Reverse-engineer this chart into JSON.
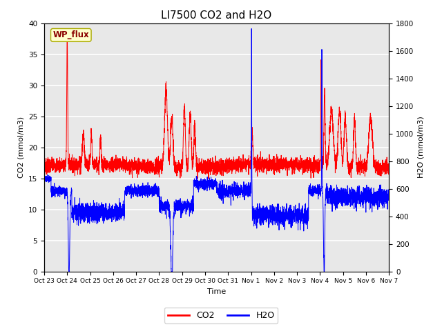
{
  "title": "LI7500 CO2 and H2O",
  "xlabel": "Time",
  "ylabel_left": "CO2 (mmol/m3)",
  "ylabel_right": "H2O (mmol/m3)",
  "ylim_left": [
    0,
    40
  ],
  "ylim_right": [
    0,
    1800
  ],
  "xtick_labels": [
    "Oct 23",
    "Oct 24",
    "Oct 25",
    "Oct 26",
    "Oct 27",
    "Oct 28",
    "Oct 29",
    "Oct 30",
    "Oct 31",
    "Nov 1",
    "Nov 2",
    "Nov 3",
    "Nov 4",
    "Nov 5",
    "Nov 6",
    "Nov 7"
  ],
  "annotation_text": "WP_flux",
  "annotation_color": "#8B0000",
  "annotation_bg": "#FFFFCC",
  "legend_labels": [
    "CO2",
    "H2O"
  ],
  "co2_color": "red",
  "h2o_color": "blue",
  "bg_color": "#E8E8E8",
  "grid_color": "white",
  "title_fontsize": 11
}
